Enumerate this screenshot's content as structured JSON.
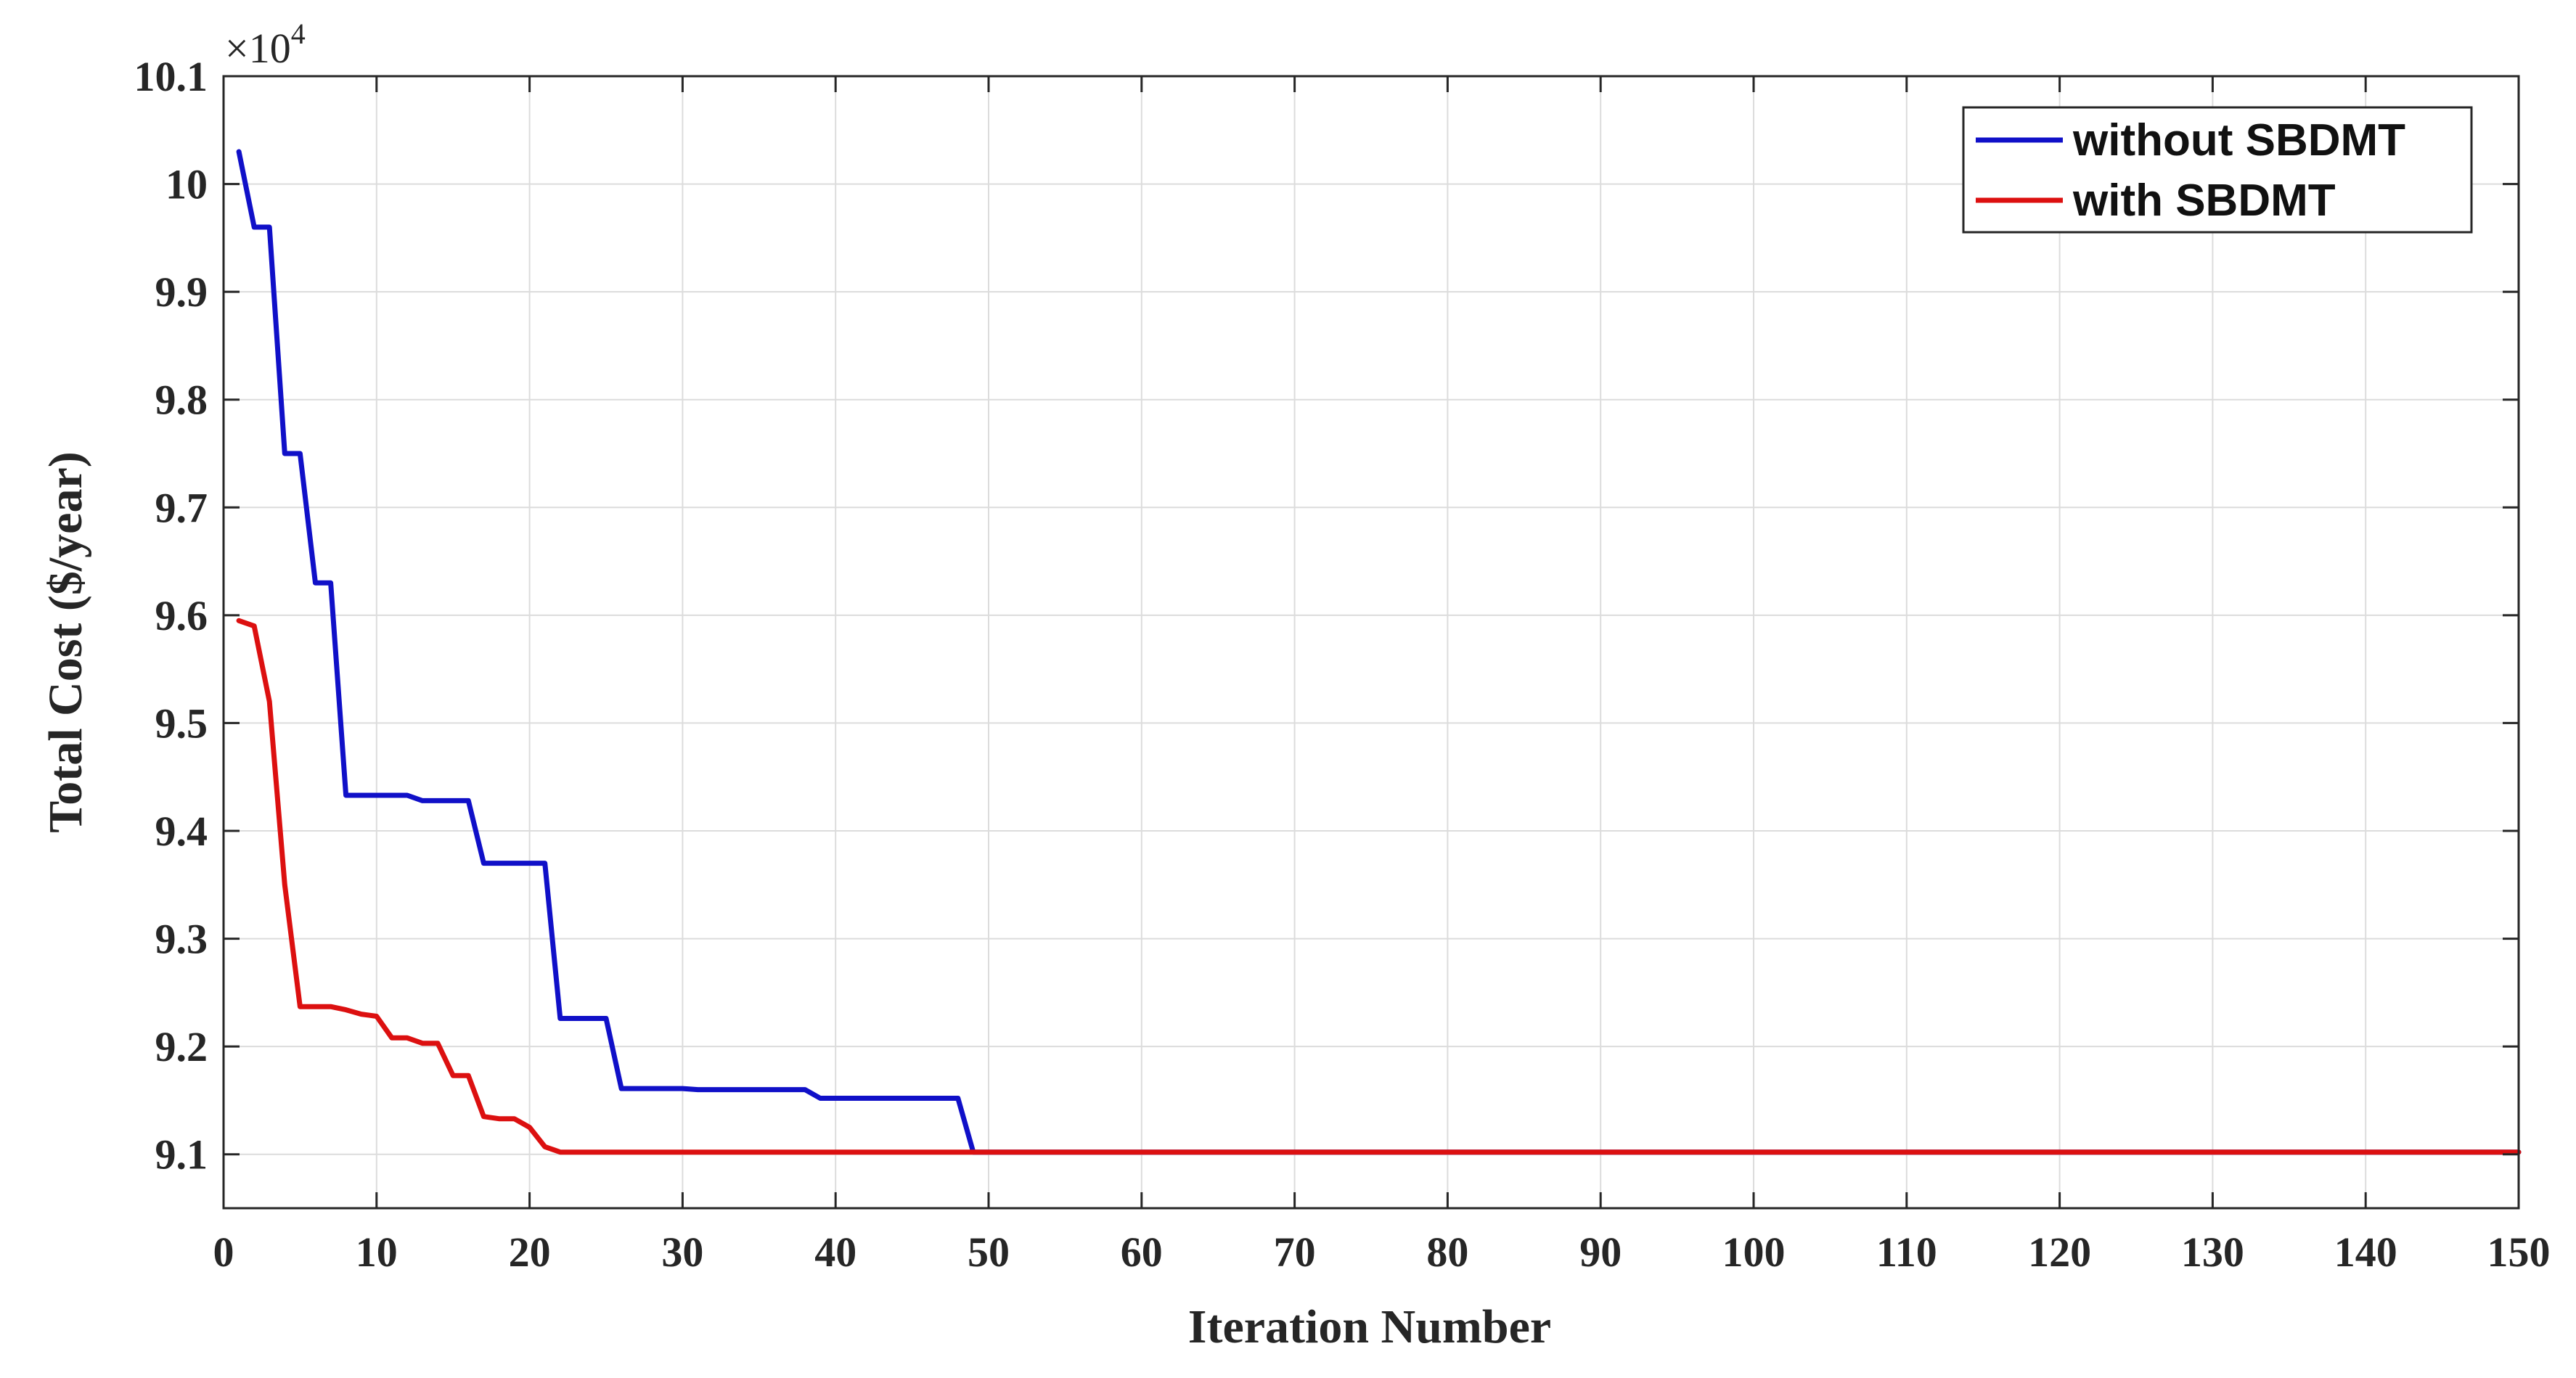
{
  "chart_data": {
    "type": "line",
    "title": "",
    "xlabel": "Iteration Number",
    "ylabel": "Total Cost ($/year)",
    "xlim": [
      0,
      150
    ],
    "ylim": [
      9.05,
      10.1
    ],
    "y_exponent": "×10",
    "y_exponent_power": "4",
    "xticks": [
      0,
      10,
      20,
      30,
      40,
      50,
      60,
      70,
      80,
      90,
      100,
      110,
      120,
      130,
      140,
      150
    ],
    "xtick_labels": [
      "0",
      "10",
      "20",
      "30",
      "40",
      "50",
      "60",
      "70",
      "80",
      "90",
      "100",
      "110",
      "120",
      "130",
      "140",
      "150"
    ],
    "yticks": [
      9.1,
      9.2,
      9.3,
      9.4,
      9.5,
      9.6,
      9.7,
      9.8,
      9.9,
      10,
      10.1
    ],
    "ytick_labels": [
      "9.1",
      "9.2",
      "9.3",
      "9.4",
      "9.5",
      "9.6",
      "9.7",
      "9.8",
      "9.9",
      "10",
      "10.1"
    ],
    "grid": true,
    "legend_position": "top-right",
    "series": [
      {
        "name": "without SBDMT",
        "color": "#1010c8",
        "points": [
          [
            1,
            10.03
          ],
          [
            2,
            9.96
          ],
          [
            3,
            9.96
          ],
          [
            4,
            9.75
          ],
          [
            5,
            9.75
          ],
          [
            6,
            9.63
          ],
          [
            7,
            9.63
          ],
          [
            8,
            9.433
          ],
          [
            9,
            9.433
          ],
          [
            10,
            9.433
          ],
          [
            11,
            9.433
          ],
          [
            12,
            9.433
          ],
          [
            13,
            9.428
          ],
          [
            14,
            9.428
          ],
          [
            15,
            9.428
          ],
          [
            16,
            9.428
          ],
          [
            17,
            9.37
          ],
          [
            18,
            9.37
          ],
          [
            19,
            9.37
          ],
          [
            20,
            9.37
          ],
          [
            21,
            9.37
          ],
          [
            22,
            9.226
          ],
          [
            23,
            9.226
          ],
          [
            24,
            9.226
          ],
          [
            25,
            9.226
          ],
          [
            26,
            9.161
          ],
          [
            27,
            9.161
          ],
          [
            28,
            9.161
          ],
          [
            29,
            9.161
          ],
          [
            30,
            9.161
          ],
          [
            31,
            9.16
          ],
          [
            35,
            9.16
          ],
          [
            38,
            9.16
          ],
          [
            39,
            9.152
          ],
          [
            40,
            9.152
          ],
          [
            44,
            9.152
          ],
          [
            48,
            9.152
          ],
          [
            49,
            9.102
          ],
          [
            50,
            9.102
          ],
          [
            150,
            9.102
          ]
        ]
      },
      {
        "name": "with SBDMT",
        "color": "#dc1010",
        "points": [
          [
            1,
            9.595
          ],
          [
            2,
            9.59
          ],
          [
            3,
            9.52
          ],
          [
            4,
            9.35
          ],
          [
            5,
            9.237
          ],
          [
            6,
            9.237
          ],
          [
            7,
            9.237
          ],
          [
            8,
            9.234
          ],
          [
            9,
            9.23
          ],
          [
            10,
            9.228
          ],
          [
            11,
            9.208
          ],
          [
            12,
            9.208
          ],
          [
            13,
            9.203
          ],
          [
            14,
            9.203
          ],
          [
            15,
            9.173
          ],
          [
            16,
            9.173
          ],
          [
            17,
            9.135
          ],
          [
            18,
            9.133
          ],
          [
            19,
            9.133
          ],
          [
            20,
            9.125
          ],
          [
            21,
            9.107
          ],
          [
            22,
            9.102
          ],
          [
            30,
            9.102
          ],
          [
            50,
            9.102
          ],
          [
            150,
            9.102
          ]
        ]
      }
    ]
  }
}
